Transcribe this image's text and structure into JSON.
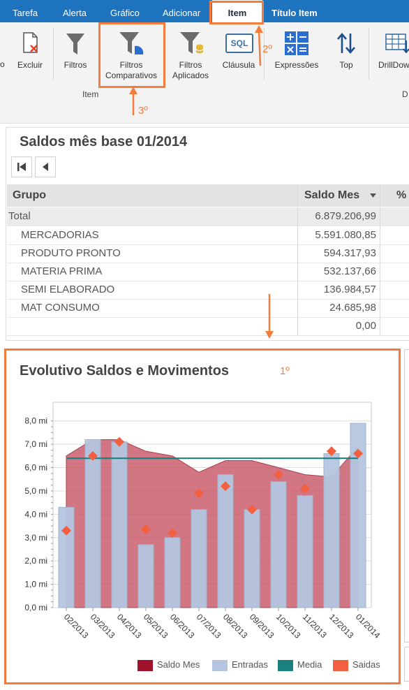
{
  "tabs": [
    {
      "label": "Tarefa"
    },
    {
      "label": "Alerta"
    },
    {
      "label": "Gráfico"
    },
    {
      "label": "Adicionar"
    },
    {
      "label": "Item"
    },
    {
      "label": "Título Item"
    }
  ],
  "ribbon": {
    "buttons": [
      {
        "label": "o"
      },
      {
        "label": "Excluir"
      },
      {
        "label": "Filtros"
      },
      {
        "label": "Filtros Comparativos"
      },
      {
        "label": "Filtros Aplicados"
      },
      {
        "label": "Cláusula"
      },
      {
        "label": "Expressões"
      },
      {
        "label": "Top"
      },
      {
        "label": "DrillDow"
      }
    ],
    "sql_text": "SQL",
    "group_label": "Item",
    "group_label_right": "D"
  },
  "annotations": {
    "step1": "1º",
    "step2": "2º",
    "step3": "3º"
  },
  "table_panel": {
    "title": "Saldos mês base 01/2014",
    "columns": [
      "Grupo",
      "Saldo Mes",
      "%"
    ],
    "rows": [
      {
        "grupo": "Total",
        "saldo": "6.879.206,99"
      },
      {
        "grupo": "MERCADORIAS",
        "saldo": "5.591.080,85"
      },
      {
        "grupo": "PRODUTO PRONTO",
        "saldo": "594.317,93"
      },
      {
        "grupo": "MATERIA PRIMA",
        "saldo": "532.137,66"
      },
      {
        "grupo": "SEMI ELABORADO",
        "saldo": "136.984,57"
      },
      {
        "grupo": "MAT CONSUMO",
        "saldo": "24.685,98"
      },
      {
        "grupo": "",
        "saldo": "0,00"
      }
    ]
  },
  "chart_panel": {
    "title": "Evolutivo Saldos e Movimentos"
  },
  "chart_data": {
    "type": "bar",
    "title": "Evolutivo Saldos e Movimentos",
    "categories": [
      "02/2013",
      "03/2013",
      "04/2013",
      "05/2013",
      "06/2013",
      "07/2013",
      "08/2013",
      "09/2013",
      "10/2013",
      "11/2013",
      "12/2013",
      "01/2014"
    ],
    "y_ticks": [
      "0,0 mi",
      "1,0 mi",
      "2,0 mi",
      "3,0 mi",
      "4,0 mi",
      "5,0 mi",
      "6,0 mi",
      "7,0 mi",
      "8,0 mi"
    ],
    "ylim": [
      0,
      8.8
    ],
    "grid": true,
    "legend_position": "bottom-right",
    "series": [
      {
        "name": "Saldo Mes",
        "kind": "area",
        "color": "#c4505f",
        "values": [
          6.5,
          7.2,
          7.2,
          6.7,
          6.5,
          5.8,
          6.3,
          6.3,
          6.0,
          5.7,
          5.6,
          6.9
        ]
      },
      {
        "name": "Entradas",
        "kind": "bar",
        "color": "#b4c6df",
        "values": [
          4.3,
          7.2,
          7.1,
          2.7,
          3.0,
          4.2,
          5.7,
          4.2,
          5.4,
          4.8,
          6.6,
          7.9
        ]
      },
      {
        "name": "Media",
        "kind": "line",
        "color": "#1a8080",
        "values": [
          6.4,
          6.4,
          6.4,
          6.4,
          6.4,
          6.4,
          6.4,
          6.4,
          6.4,
          6.4,
          6.4,
          6.4
        ]
      },
      {
        "name": "Saidas",
        "kind": "scatter",
        "color": "#f26040",
        "values": [
          3.3,
          6.5,
          7.1,
          3.35,
          3.2,
          4.9,
          5.2,
          4.2,
          5.7,
          5.1,
          6.7,
          6.6
        ]
      }
    ]
  },
  "colors": {
    "topbar": "#1e73be",
    "accent_annotation": "#f47c3c",
    "area": "#c4505f",
    "bar": "#b4c6df",
    "media": "#1a8080",
    "saidas": "#f26040",
    "legend_saldo_swatch": "#a0132a"
  },
  "icons": [
    "document-delete-icon",
    "filter-icon",
    "filter-comparative-icon",
    "filter-applied-icon",
    "sql-icon",
    "expressions-icon",
    "sort-arrows-icon",
    "drilldown-icon",
    "first-page-icon",
    "prev-page-icon",
    "sort-desc-icon"
  ]
}
